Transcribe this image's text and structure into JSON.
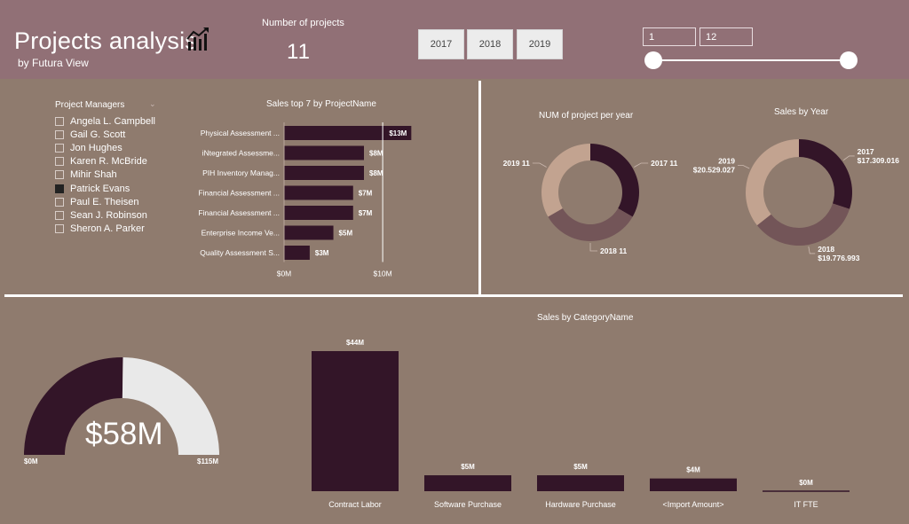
{
  "header": {
    "title": "Projects analysis",
    "subtitle": "by Futura View",
    "kpi_label": "Number of projects",
    "kpi_value": "11"
  },
  "year_buttons": [
    "2017",
    "2018",
    "2019"
  ],
  "month_range": {
    "from": "1",
    "to": "12"
  },
  "project_managers": {
    "header": "Project Managers",
    "items": [
      {
        "name": "Angela L. Campbell",
        "checked": false
      },
      {
        "name": "Gail G. Scott",
        "checked": false
      },
      {
        "name": "Jon Hughes",
        "checked": false
      },
      {
        "name": "Karen R. McBride",
        "checked": false
      },
      {
        "name": "Mihir Shah",
        "checked": false
      },
      {
        "name": "Patrick Evans",
        "checked": true
      },
      {
        "name": "Paul E. Theisen",
        "checked": false
      },
      {
        "name": "Sean J. Robinson",
        "checked": false
      },
      {
        "name": "Sheron A. Parker",
        "checked": false
      }
    ]
  },
  "colors": {
    "accent_dark": "#331528",
    "accent_mid": "#735558",
    "accent_light": "#c2a390",
    "gauge_empty": "#e9e9e9",
    "header_bg": "#917076",
    "canvas_bg": "#8f7b6e"
  },
  "chart_data": [
    {
      "type": "bar",
      "orientation": "horizontal",
      "title": "Sales top 7 by ProjectName",
      "categories": [
        "Physical Assessment ...",
        "iNtegrated Assessme...",
        "PIH Inventory Manag...",
        "Financial Assessment ...",
        "Financial Assessment ...",
        "Enterprise Income Ve...",
        "Quality Assessment S..."
      ],
      "values": [
        12.9,
        8.1,
        8.1,
        7.0,
        7.0,
        5.0,
        2.6
      ],
      "data_labels": [
        "$13M",
        "$8M",
        "$8M",
        "$7M",
        "$7M",
        "$5M",
        "$3M"
      ],
      "x_ticks": [
        0,
        10
      ],
      "x_tick_labels": [
        "$0M",
        "$10M"
      ],
      "xlim": [
        0,
        13.5
      ]
    },
    {
      "type": "pie",
      "variant": "donut",
      "title": "NUM of project per year",
      "slices": [
        {
          "label": "2017",
          "value": 11,
          "display": "2017 11"
        },
        {
          "label": "2018",
          "value": 11,
          "display": "2018 11"
        },
        {
          "label": "2019",
          "value": 11,
          "display": "2019 11"
        }
      ]
    },
    {
      "type": "pie",
      "variant": "donut",
      "title": "Sales by Year",
      "slices": [
        {
          "label": "2017",
          "value": 17309016,
          "display": "$17.309.016"
        },
        {
          "label": "2018",
          "value": 19776993,
          "display": "$19.776.993"
        },
        {
          "label": "2019",
          "value": 20529027,
          "display": "$20.529.027"
        }
      ]
    },
    {
      "type": "bar",
      "title": "Sales by CategoryName",
      "categories": [
        "Contract Labor",
        "Software Purchase",
        "Hardware Purchase",
        "<Import Amount>",
        "IT FTE"
      ],
      "values": [
        44,
        5,
        5,
        4,
        0
      ],
      "data_labels": [
        "$44M",
        "$5M",
        "$5M",
        "$4M",
        "$0M"
      ],
      "ylim": [
        0,
        44
      ]
    },
    {
      "type": "gauge",
      "value": 58,
      "value_label": "$58M",
      "min": 0,
      "max": 115,
      "min_label": "$0M",
      "max_label": "$115M"
    }
  ]
}
